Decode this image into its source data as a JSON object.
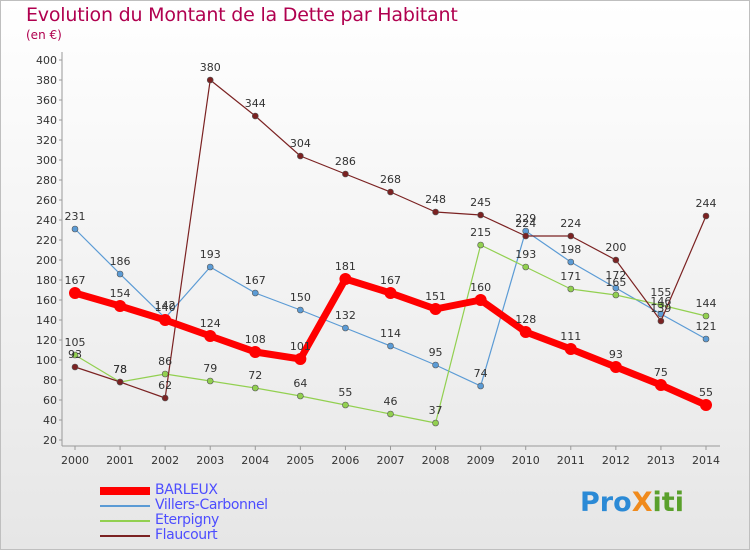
{
  "title": "Evolution du Montant de la Dette par Habitant",
  "subtitle": "(en €)",
  "logo": {
    "text": "Proxiti",
    "letters": [
      {
        "ch": "P",
        "color": "#2b8ad6"
      },
      {
        "ch": "r",
        "color": "#2b8ad6"
      },
      {
        "ch": "o",
        "color": "#2b8ad6"
      },
      {
        "ch": "X",
        "color": "#f08a1c"
      },
      {
        "ch": "i",
        "color": "#5aa02c"
      },
      {
        "ch": "t",
        "color": "#5aa02c"
      },
      {
        "ch": "i",
        "color": "#5aa02c"
      }
    ]
  },
  "chart_data": {
    "type": "line",
    "title": "Evolution du Montant de la Dette par Habitant",
    "subtitle": "(en €)",
    "x": [
      "2000",
      "2001",
      "2002",
      "2003",
      "2004",
      "2005",
      "2006",
      "2007",
      "2008",
      "2009",
      "2010",
      "2011",
      "2012",
      "2013",
      "2014"
    ],
    "ylim": [
      20,
      400
    ],
    "yticks": [
      20,
      40,
      60,
      80,
      100,
      120,
      140,
      160,
      180,
      200,
      220,
      240,
      260,
      280,
      300,
      320,
      340,
      360,
      380,
      400
    ],
    "grid": false,
    "legend_placement": "bottom-left",
    "series": [
      {
        "name": "BARLEUX",
        "color": "#ff0000",
        "values": [
          167,
          154,
          140,
          124,
          108,
          101,
          181,
          167,
          151,
          160,
          128,
          111,
          93,
          75,
          55
        ]
      },
      {
        "name": "Villers-Carbonnel",
        "color": "#5b9bd5",
        "values": [
          231,
          186,
          142,
          193,
          167,
          150,
          132,
          114,
          95,
          74,
          229,
          198,
          172,
          146,
          121
        ]
      },
      {
        "name": "Eterpigny",
        "color": "#92d050",
        "values": [
          105,
          78,
          86,
          79,
          72,
          64,
          55,
          46,
          37,
          215,
          193,
          171,
          165,
          155,
          144
        ]
      },
      {
        "name": "Flaucourt",
        "color": "#7b2222",
        "values": [
          93,
          78,
          62,
          380,
          344,
          304,
          286,
          268,
          248,
          245,
          224,
          224,
          200,
          139,
          244
        ]
      }
    ],
    "data_labels": [
      {
        "series": 0,
        "labels": [
          "167",
          "154",
          "140",
          "124",
          "108",
          "101",
          "181",
          "167",
          "151",
          "160",
          "128",
          "111",
          "93",
          "75",
          "55"
        ]
      },
      {
        "series": 1,
        "labels": [
          "231",
          "186",
          "142",
          "193",
          "167",
          "150",
          "132",
          "114",
          "95",
          "74",
          "229",
          "198",
          "172",
          "146",
          "121"
        ]
      },
      {
        "series": 2,
        "labels": [
          "105",
          "78",
          "86",
          "79",
          "72",
          "64",
          "55",
          "46",
          "37",
          "215",
          "193",
          "171",
          "165",
          "155",
          "144"
        ]
      },
      {
        "series": 3,
        "labels": [
          "93",
          "78",
          "62",
          "380",
          "344",
          "304",
          "286",
          "268",
          "248",
          "245",
          "224",
          "224",
          "200",
          "139",
          "244"
        ]
      }
    ]
  }
}
